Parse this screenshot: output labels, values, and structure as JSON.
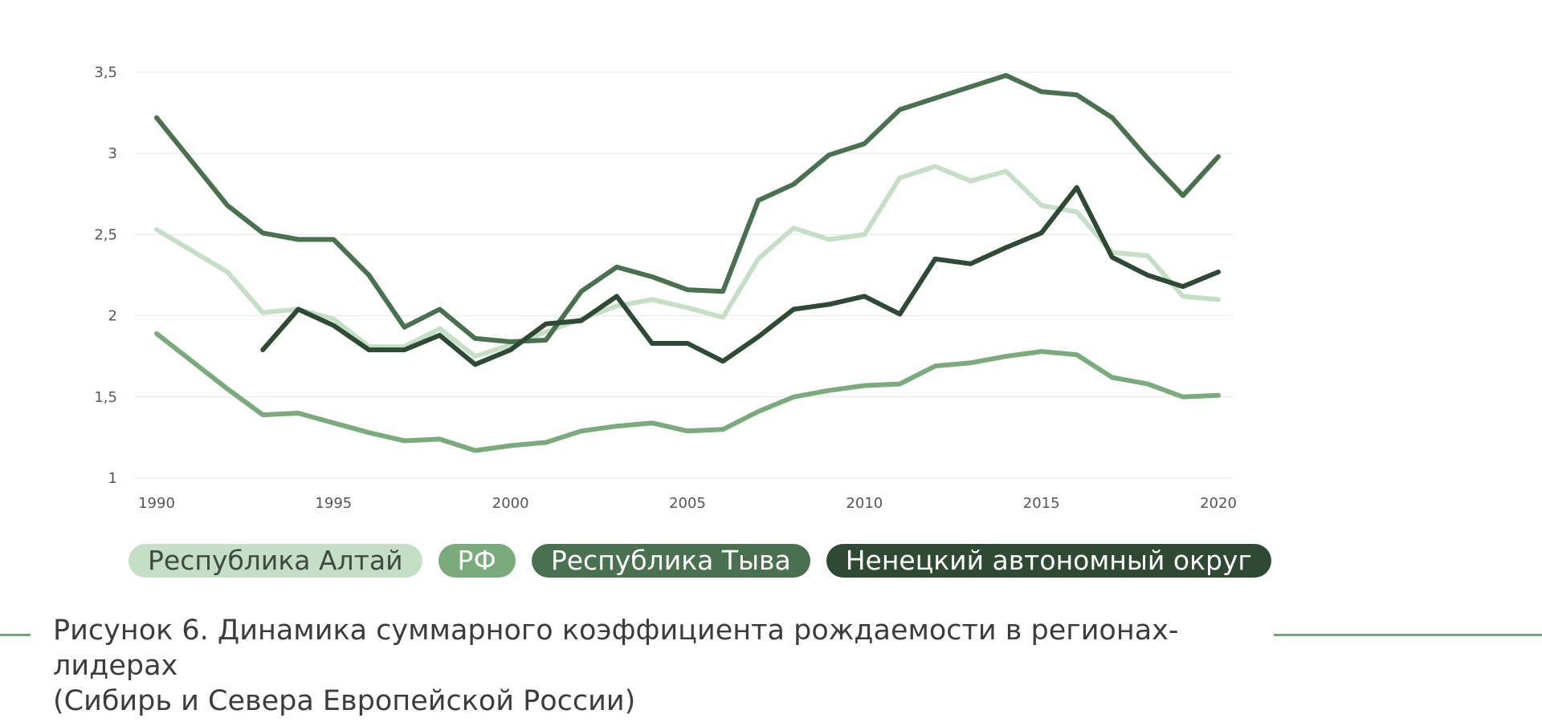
{
  "chart_data": {
    "type": "line",
    "title": "",
    "xlabel": "",
    "ylabel": "",
    "xlim": [
      1990,
      2020
    ],
    "ylim": [
      1,
      3.5
    ],
    "grid": true,
    "legend_placement": "bottom",
    "x_ticks": [
      {
        "value": 1990,
        "label": "1990"
      },
      {
        "value": 1995,
        "label": "1995"
      },
      {
        "value": 2000,
        "label": "2000"
      },
      {
        "value": 2005,
        "label": "2005"
      },
      {
        "value": 2010,
        "label": "2010"
      },
      {
        "value": 2015,
        "label": "2015"
      },
      {
        "value": 2020,
        "label": "2020"
      }
    ],
    "y_ticks": [
      {
        "value": 1,
        "label": "1"
      },
      {
        "value": 1.5,
        "label": "1,5"
      },
      {
        "value": 2,
        "label": "2"
      },
      {
        "value": 2.5,
        "label": "2,5"
      },
      {
        "value": 3,
        "label": "3"
      },
      {
        "value": 3.5,
        "label": "3,5"
      }
    ],
    "series": [
      {
        "name": "Республика Алтай",
        "color": "#c5dfc6",
        "text_color": "#3f4a40",
        "points": [
          [
            1990,
            2.53
          ],
          [
            1992,
            2.27
          ],
          [
            1993,
            2.02
          ],
          [
            1994,
            2.04
          ],
          [
            1995,
            1.98
          ],
          [
            1996,
            1.81
          ],
          [
            1997,
            1.81
          ],
          [
            1998,
            1.92
          ],
          [
            1999,
            1.75
          ],
          [
            2000,
            1.82
          ],
          [
            2001,
            1.9
          ],
          [
            2002,
            1.98
          ],
          [
            2003,
            2.06
          ],
          [
            2004,
            2.1
          ],
          [
            2005,
            2.05
          ],
          [
            2006,
            1.99
          ],
          [
            2007,
            2.35
          ],
          [
            2008,
            2.54
          ],
          [
            2009,
            2.47
          ],
          [
            2010,
            2.5
          ],
          [
            2011,
            2.85
          ],
          [
            2012,
            2.92
          ],
          [
            2013,
            2.83
          ],
          [
            2014,
            2.89
          ],
          [
            2015,
            2.68
          ],
          [
            2016,
            2.64
          ],
          [
            2017,
            2.39
          ],
          [
            2018,
            2.37
          ],
          [
            2019,
            2.12
          ],
          [
            2020,
            2.1
          ]
        ]
      },
      {
        "name": "РФ",
        "color": "#7baa7d",
        "text_color": "#ffffff",
        "points": [
          [
            1990,
            1.89
          ],
          [
            1992,
            1.55
          ],
          [
            1993,
            1.39
          ],
          [
            1994,
            1.4
          ],
          [
            1995,
            1.34
          ],
          [
            1996,
            1.28
          ],
          [
            1997,
            1.23
          ],
          [
            1998,
            1.24
          ],
          [
            1999,
            1.17
          ],
          [
            2000,
            1.2
          ],
          [
            2001,
            1.22
          ],
          [
            2002,
            1.29
          ],
          [
            2003,
            1.32
          ],
          [
            2004,
            1.34
          ],
          [
            2005,
            1.29
          ],
          [
            2006,
            1.3
          ],
          [
            2007,
            1.41
          ],
          [
            2008,
            1.5
          ],
          [
            2009,
            1.54
          ],
          [
            2010,
            1.57
          ],
          [
            2011,
            1.58
          ],
          [
            2012,
            1.69
          ],
          [
            2013,
            1.71
          ],
          [
            2014,
            1.75
          ],
          [
            2015,
            1.78
          ],
          [
            2016,
            1.76
          ],
          [
            2017,
            1.62
          ],
          [
            2018,
            1.58
          ],
          [
            2019,
            1.5
          ],
          [
            2020,
            1.51
          ]
        ]
      },
      {
        "name": "Республика Тыва",
        "color": "#4a714f",
        "text_color": "#ffffff",
        "points": [
          [
            1990,
            3.22
          ],
          [
            1992,
            2.68
          ],
          [
            1993,
            2.51
          ],
          [
            1994,
            2.47
          ],
          [
            1995,
            2.47
          ],
          [
            1996,
            2.25
          ],
          [
            1997,
            1.93
          ],
          [
            1998,
            2.04
          ],
          [
            1999,
            1.86
          ],
          [
            2000,
            1.84
          ],
          [
            2001,
            1.85
          ],
          [
            2002,
            2.15
          ],
          [
            2003,
            2.3
          ],
          [
            2004,
            2.24
          ],
          [
            2005,
            2.16
          ],
          [
            2006,
            2.15
          ],
          [
            2007,
            2.71
          ],
          [
            2008,
            2.81
          ],
          [
            2009,
            2.99
          ],
          [
            2010,
            3.06
          ],
          [
            2011,
            3.27
          ],
          [
            2012,
            3.34
          ],
          [
            2013,
            3.41
          ],
          [
            2014,
            3.48
          ],
          [
            2015,
            3.38
          ],
          [
            2016,
            3.36
          ],
          [
            2017,
            3.22
          ],
          [
            2018,
            2.97
          ],
          [
            2019,
            2.74
          ],
          [
            2020,
            2.98
          ]
        ]
      },
      {
        "name": "Ненецкий автономный округ",
        "color": "#2f4a34",
        "text_color": "#ffffff",
        "points": [
          [
            1993,
            1.79
          ],
          [
            1994,
            2.04
          ],
          [
            1995,
            1.94
          ],
          [
            1996,
            1.79
          ],
          [
            1997,
            1.79
          ],
          [
            1998,
            1.88
          ],
          [
            1999,
            1.7
          ],
          [
            2000,
            1.79
          ],
          [
            2001,
            1.95
          ],
          [
            2002,
            1.97
          ],
          [
            2003,
            2.12
          ],
          [
            2004,
            1.83
          ],
          [
            2005,
            1.83
          ],
          [
            2006,
            1.72
          ],
          [
            2007,
            1.87
          ],
          [
            2008,
            2.04
          ],
          [
            2009,
            2.07
          ],
          [
            2010,
            2.12
          ],
          [
            2011,
            2.01
          ],
          [
            2012,
            2.35
          ],
          [
            2013,
            2.32
          ],
          [
            2014,
            2.42
          ],
          [
            2015,
            2.51
          ],
          [
            2016,
            2.79
          ],
          [
            2017,
            2.36
          ],
          [
            2018,
            2.25
          ],
          [
            2019,
            2.18
          ],
          [
            2020,
            2.27
          ]
        ]
      }
    ]
  },
  "legend": {
    "items": [
      {
        "label": "Республика Алтай"
      },
      {
        "label": "РФ"
      },
      {
        "label": "Республика Тыва"
      },
      {
        "label": "Ненецкий автономный округ"
      }
    ]
  },
  "caption": {
    "line1": "Рисунок 6. Динамика суммарного коэффициента рождаемости в регионах-лидерах",
    "line2": "(Сибирь и Севера Европейской России)",
    "rule_color": "#6ea374"
  }
}
